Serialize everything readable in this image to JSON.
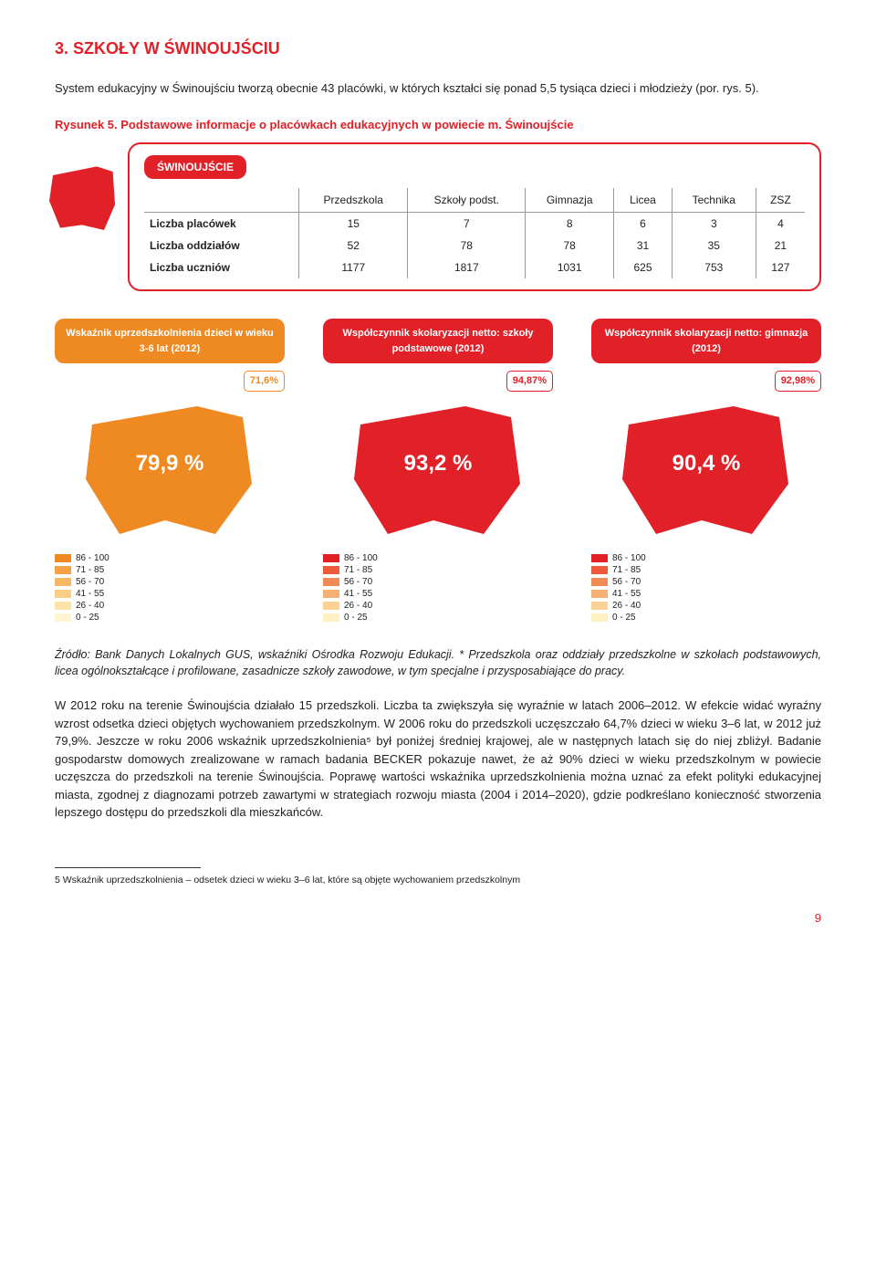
{
  "page": {
    "section_title": "3. SZKOŁY W ŚWINOUJŚCIU",
    "intro": "System edukacyjny w Świnoujściu tworzą obecnie 43 placówki, w których kształci się ponad 5,5 tysiąca dzieci i młodzieży (por. rys. 5).",
    "caption": "Rysunek 5. Podstawowe informacje o placówkach edukacyjnych w powiecie m. Świnoujście",
    "region_name": "ŚWINOUJŚCIE",
    "source_note": "Źródło: Bank Danych Lokalnych GUS, wskaźniki Ośrodka Rozwoju Edukacji. * Przedszkola oraz oddziały przedszkolne w szkołach podstawowych, licea ogólnokształcące i profilowane, zasadnicze szkoły zawodowe, w tym specjalne i przysposabiające do pracy.",
    "body_para": "W 2012 roku na terenie Świnoujścia działało 15 przedszkoli. Liczba ta zwiększyła się wyraźnie w latach 2006–2012. W efekcie widać wyraźny wzrost odsetka dzieci objętych wychowaniem przedszkolnym. W 2006 roku do przedszkoli uczęszczało 64,7% dzieci w wieku 3–6 lat, w 2012 już 79,9%. Jeszcze w roku 2006 wskaźnik uprzedszkolnienia⁵ był poniżej średniej krajowej, ale w następnych latach się do niej zbliżył. Badanie gospodarstw domowych zrealizowane w ramach badania BECKER pokazuje nawet, że aż 90% dzieci w wieku przedszkolnym w powiecie uczęszcza do przedszkoli na terenie Świnoujścia. Poprawę wartości wskaźnika uprzedszkolnienia można uznać za efekt polityki edukacyjnej miasta, zgodnej z diagnozami potrzeb zawartymi w strategiach rozwoju miasta (2004 i 2014–2020), gdzie podkreślano konieczność stworzenia lepszego dostępu do przedszkoli dla mieszkańców.",
    "footnote": "5   Wskaźnik uprzedszkolnienia – odsetek dzieci w wieku 3–6 lat, które są objęte wychowaniem przedszkolnym",
    "page_number": "9"
  },
  "table": {
    "columns": [
      "",
      "Przedszkola",
      "Szkoły podst.",
      "Gimnazja",
      "Licea",
      "Technika",
      "ZSZ"
    ],
    "rows": [
      [
        "Liczba placówek",
        "15",
        "7",
        "8",
        "6",
        "3",
        "4"
      ],
      [
        "Liczba oddziałów",
        "52",
        "78",
        "78",
        "31",
        "35",
        "21"
      ],
      [
        "Liczba uczniów",
        "1177",
        "1817",
        "1031",
        "625",
        "753",
        "127"
      ]
    ]
  },
  "indicators": [
    {
      "title": "Wskaźnik uprzedszkolnienia dzieci w wieku 3-6 lat (2012)",
      "country_badge": "71,6%",
      "map_pct": "79,9 %",
      "color": "#ef8a22"
    },
    {
      "title": "Współczynnik skolaryzacji netto: szkoły podstawowe (2012)",
      "country_badge": "94,87%",
      "map_pct": "93,2 %",
      "color": "#e22028"
    },
    {
      "title": "Współczynnik skolaryzacji netto: gimnazja (2012)",
      "country_badge": "92,98%",
      "map_pct": "90,4 %",
      "color": "#e22028"
    }
  ],
  "legend": {
    "ranges": [
      "86 - 100",
      "71 - 85",
      "56 - 70",
      "41 - 55",
      "26 - 40",
      "0 - 25"
    ],
    "colors_red": [
      "#e22028",
      "#ee5a3a",
      "#f28b53",
      "#f7b073",
      "#fbd194",
      "#fff0c2"
    ],
    "colors_orange": [
      "#ef8a22",
      "#f4a244",
      "#f7b866",
      "#fbce88",
      "#fde3aa",
      "#fff5d0"
    ]
  },
  "colors": {
    "accent_red": "#e22028",
    "accent_orange": "#ef8a22",
    "background": "#ffffff",
    "text": "#222222"
  }
}
